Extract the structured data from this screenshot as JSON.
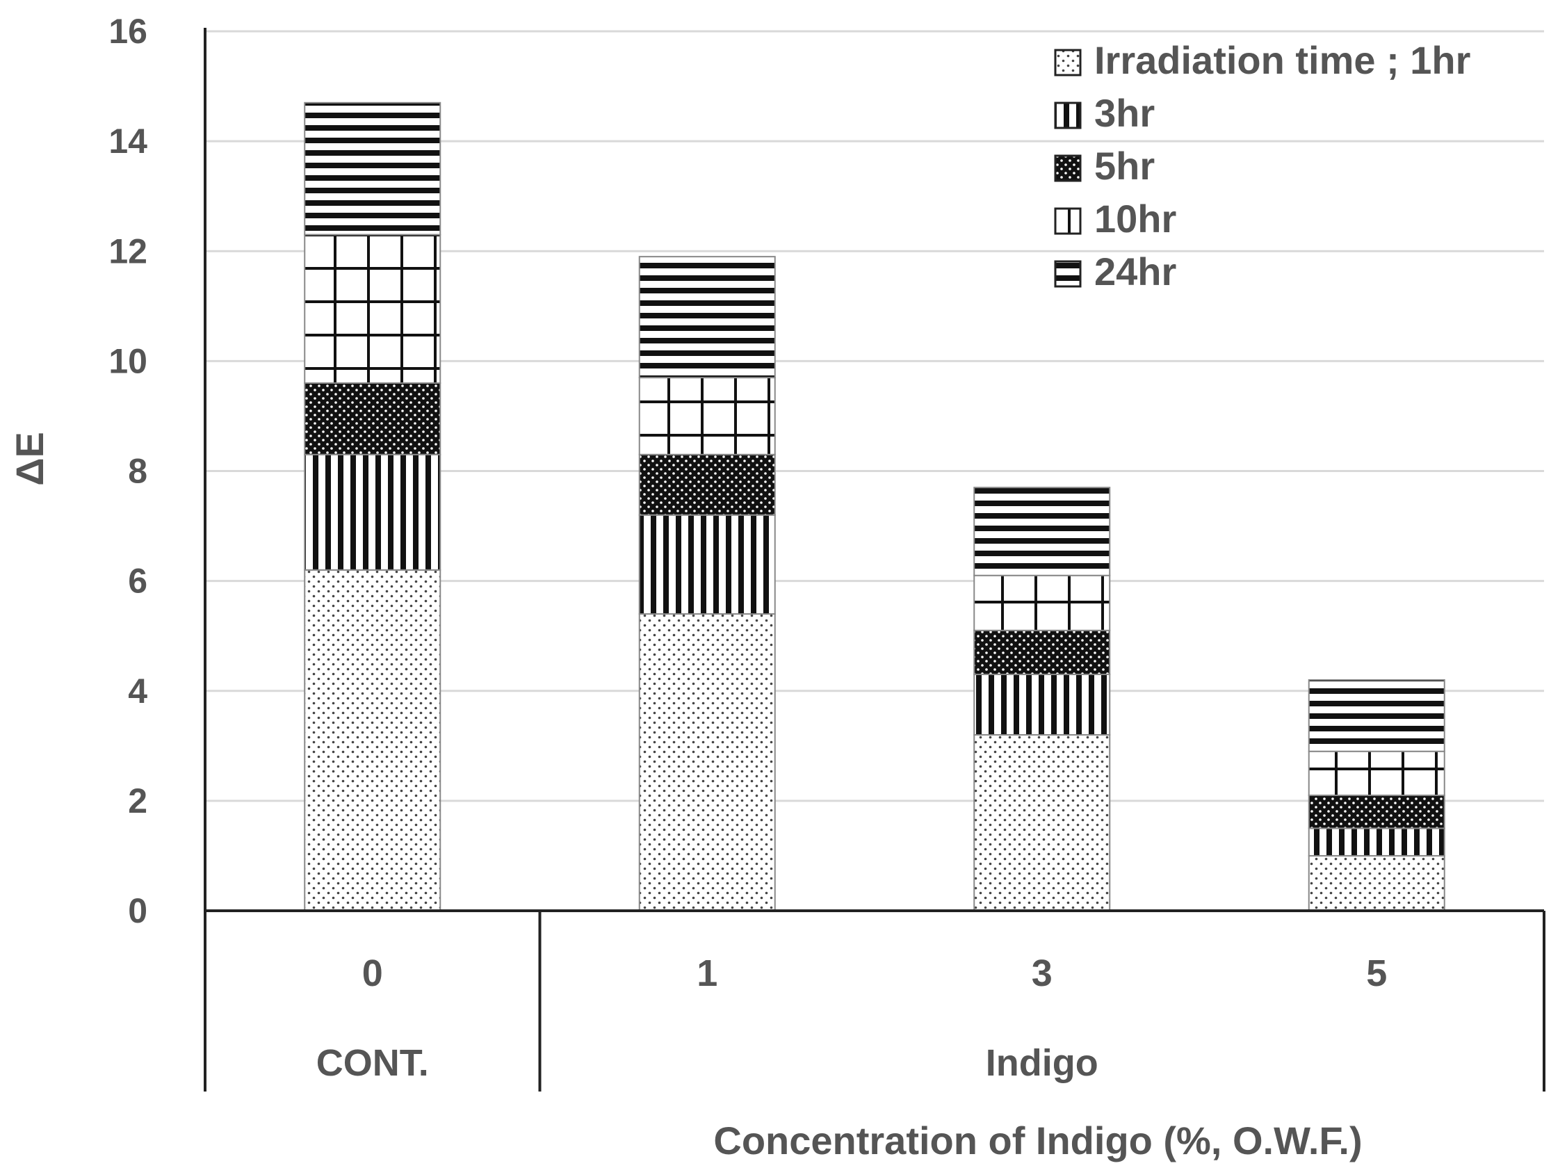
{
  "chart_data": {
    "type": "bar",
    "stacked": true,
    "categories": [
      "0",
      "1",
      "3",
      "5"
    ],
    "group_labels": [
      {
        "label": "CONT.",
        "categories": [
          "0"
        ]
      },
      {
        "label": "Indigo",
        "categories": [
          "1",
          "3",
          "5"
        ]
      }
    ],
    "series": [
      {
        "name": "Irradiation time ; 1hr",
        "pattern": "dots",
        "values": [
          6.2,
          5.4,
          3.2,
          1.0
        ]
      },
      {
        "name": "3hr",
        "pattern": "vertical-lines",
        "values": [
          2.1,
          1.8,
          1.1,
          0.5
        ]
      },
      {
        "name": "5hr",
        "pattern": "dense-checker",
        "values": [
          1.3,
          1.1,
          0.8,
          0.6
        ]
      },
      {
        "name": "10hr",
        "pattern": "grid",
        "values": [
          2.7,
          1.4,
          1.0,
          0.8
        ]
      },
      {
        "name": "24hr",
        "pattern": "horizontal-lines",
        "values": [
          2.4,
          2.2,
          1.6,
          1.3
        ]
      }
    ],
    "xlabel": "Concentration of Indigo (%, O.W.F.)",
    "ylabel": "ΔE",
    "ylim": [
      0,
      16
    ],
    "yticks": [
      0,
      2,
      4,
      6,
      8,
      10,
      12,
      14,
      16
    ],
    "grid": true,
    "legend_position": "top-right"
  }
}
